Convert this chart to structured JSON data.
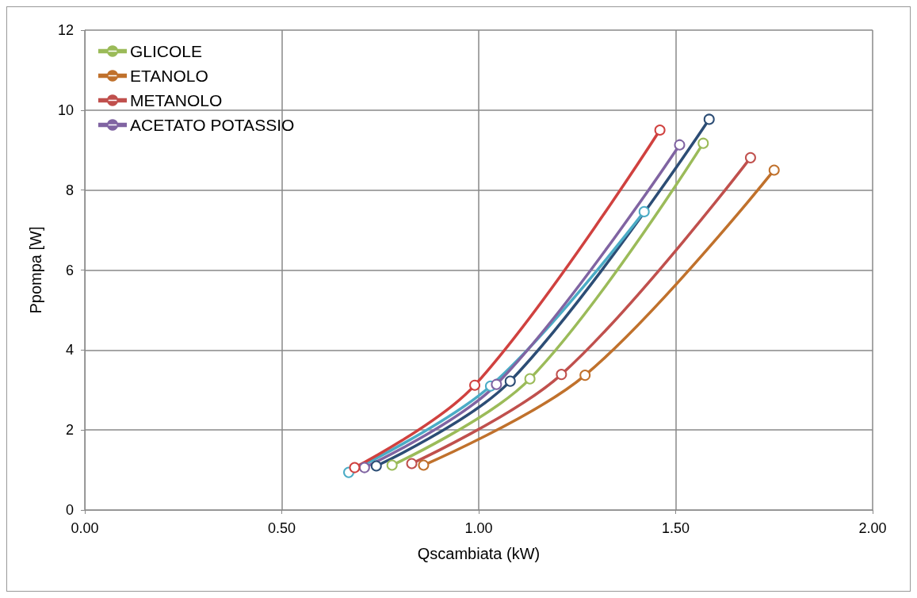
{
  "chart_data": {
    "type": "line",
    "xlabel": "Qscambiata (kW)",
    "ylabel": "Ppompa [W]",
    "xlim": [
      0,
      2
    ],
    "xticks": [
      {
        "value": 0,
        "label": "0.00"
      },
      {
        "value": 0.5,
        "label": "0.50"
      },
      {
        "value": 1,
        "label": "1.00"
      },
      {
        "value": 1.5,
        "label": "1.50"
      },
      {
        "value": 2,
        "label": "2.00"
      }
    ],
    "ylim": [
      0,
      12
    ],
    "yticks": [
      0,
      2,
      4,
      6,
      8,
      10,
      12
    ],
    "grid": true,
    "legend": "top left",
    "marker": "circle",
    "line_style": "solid",
    "series": [
      {
        "name": "GLICOLE",
        "color": "#9bbb59",
        "x": [
          0.78,
          1.13,
          1.57
        ],
        "values": [
          1.12,
          3.28,
          9.17
        ]
      },
      {
        "name": "ETANOLO",
        "color": "#c0712c",
        "x": [
          0.86,
          1.27,
          1.75
        ],
        "values": [
          1.12,
          3.37,
          8.5
        ]
      },
      {
        "name": "METANOLO",
        "color": "#c0504d",
        "x": [
          0.83,
          1.21,
          1.69
        ],
        "values": [
          1.16,
          3.39,
          8.81
        ]
      },
      {
        "color": "#2c4d75",
        "x": [
          0.74,
          1.08,
          1.585
        ],
        "values": [
          1.1,
          3.22,
          9.77
        ]
      },
      {
        "color": "#4bacc6",
        "x": [
          0.67,
          1.03,
          1.42
        ],
        "values": [
          0.94,
          3.1,
          7.46
        ]
      },
      {
        "name": "ACETATO POTASSIO",
        "color": "#8064a2",
        "x": [
          0.71,
          1.045,
          1.51
        ],
        "values": [
          1.06,
          3.14,
          9.13
        ]
      },
      {
        "color": "#d0413f",
        "x": [
          0.685,
          0.99,
          1.46
        ],
        "values": [
          1.06,
          3.12,
          9.5
        ]
      }
    ]
  }
}
